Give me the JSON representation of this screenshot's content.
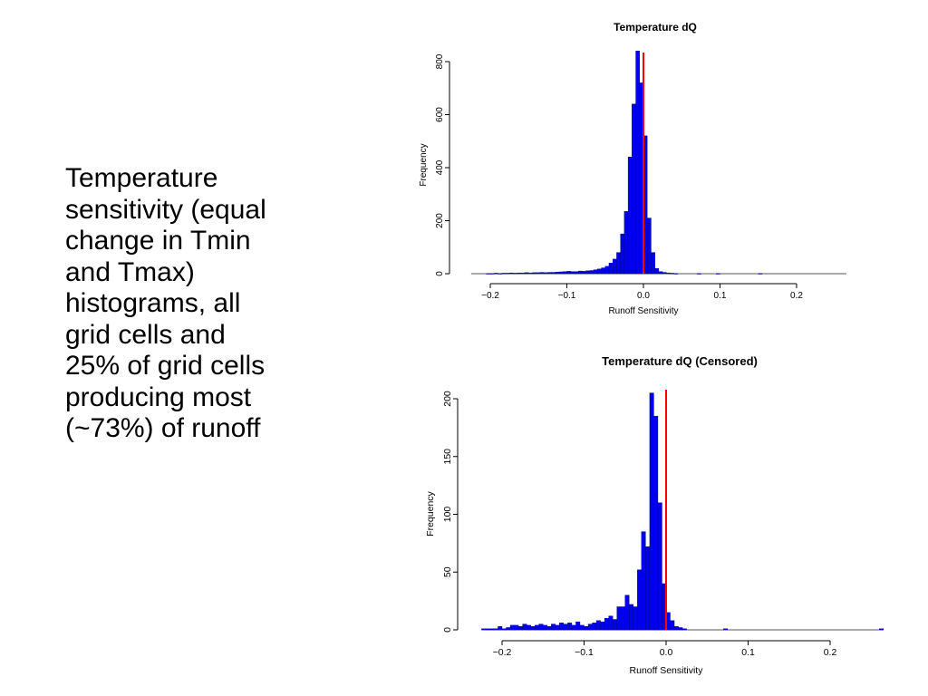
{
  "slide": {
    "text": "Temperature\nsensitivity (equal\nchange in Tmin\nand Tmax)\nhistograms, all\ngrid cells and\n25% of grid cells\nproducing most\n(~73%) of runoff"
  },
  "colors": {
    "bars": "#0000ee",
    "bar_outline": "#000080",
    "marker_line": "#ff0000"
  },
  "chart_data": [
    {
      "type": "bar",
      "title": "Temperature dQ",
      "xlabel": "Runoff Sensitivity",
      "ylabel": "Frequency",
      "xlim": [
        -0.225,
        0.265
      ],
      "ylim": [
        0,
        800
      ],
      "xticks": [
        -0.2,
        -0.1,
        0.0,
        0.1,
        0.2
      ],
      "xtick_labels": [
        "−0.2",
        "−0.1",
        "0.0",
        "0.1",
        "0.2"
      ],
      "yticks": [
        0,
        200,
        400,
        600,
        800
      ],
      "ytick_labels": [
        "0",
        "200",
        "400",
        "600",
        "800"
      ],
      "bin_width": 0.005,
      "bins": [
        {
          "x": -0.205,
          "y": 1
        },
        {
          "x": -0.2,
          "y": 1
        },
        {
          "x": -0.195,
          "y": 2
        },
        {
          "x": -0.19,
          "y": 1
        },
        {
          "x": -0.185,
          "y": 2
        },
        {
          "x": -0.18,
          "y": 2
        },
        {
          "x": -0.175,
          "y": 3
        },
        {
          "x": -0.17,
          "y": 2
        },
        {
          "x": -0.165,
          "y": 3
        },
        {
          "x": -0.16,
          "y": 3
        },
        {
          "x": -0.155,
          "y": 4
        },
        {
          "x": -0.15,
          "y": 3
        },
        {
          "x": -0.145,
          "y": 4
        },
        {
          "x": -0.14,
          "y": 4
        },
        {
          "x": -0.135,
          "y": 5
        },
        {
          "x": -0.13,
          "y": 4
        },
        {
          "x": -0.125,
          "y": 5
        },
        {
          "x": -0.12,
          "y": 5
        },
        {
          "x": -0.115,
          "y": 6
        },
        {
          "x": -0.11,
          "y": 7
        },
        {
          "x": -0.105,
          "y": 8
        },
        {
          "x": -0.1,
          "y": 9
        },
        {
          "x": -0.095,
          "y": 8
        },
        {
          "x": -0.09,
          "y": 8
        },
        {
          "x": -0.085,
          "y": 10
        },
        {
          "x": -0.08,
          "y": 9
        },
        {
          "x": -0.075,
          "y": 11
        },
        {
          "x": -0.07,
          "y": 12
        },
        {
          "x": -0.065,
          "y": 15
        },
        {
          "x": -0.06,
          "y": 18
        },
        {
          "x": -0.055,
          "y": 22
        },
        {
          "x": -0.05,
          "y": 28
        },
        {
          "x": -0.045,
          "y": 40
        },
        {
          "x": -0.04,
          "y": 55
        },
        {
          "x": -0.035,
          "y": 80
        },
        {
          "x": -0.03,
          "y": 150
        },
        {
          "x": -0.025,
          "y": 235
        },
        {
          "x": -0.02,
          "y": 440
        },
        {
          "x": -0.015,
          "y": 640
        },
        {
          "x": -0.01,
          "y": 840
        },
        {
          "x": -0.005,
          "y": 720
        },
        {
          "x": 0.0,
          "y": 520
        },
        {
          "x": 0.005,
          "y": 210
        },
        {
          "x": 0.01,
          "y": 80
        },
        {
          "x": 0.015,
          "y": 20
        },
        {
          "x": 0.02,
          "y": 8
        },
        {
          "x": 0.025,
          "y": 5
        },
        {
          "x": 0.03,
          "y": 3
        },
        {
          "x": 0.035,
          "y": 2
        },
        {
          "x": 0.04,
          "y": 1
        },
        {
          "x": 0.07,
          "y": 1
        },
        {
          "x": 0.095,
          "y": 1
        },
        {
          "x": 0.15,
          "y": 1
        }
      ],
      "vline_x": 0.0
    },
    {
      "type": "bar",
      "title": "Temperature dQ (Censored)",
      "xlabel": "Runoff Sensitivity",
      "ylabel": "Frequency",
      "xlim": [
        -0.225,
        0.265
      ],
      "ylim": [
        0,
        200
      ],
      "xticks": [
        -0.2,
        -0.1,
        0.0,
        0.1,
        0.2
      ],
      "xtick_labels": [
        "−0.2",
        "−0.1",
        "0.0",
        "0.1",
        "0.2"
      ],
      "yticks": [
        0,
        50,
        100,
        150,
        200
      ],
      "ytick_labels": [
        "0",
        "50",
        "100",
        "150",
        "200"
      ],
      "bin_width": 0.005,
      "bins": [
        {
          "x": -0.225,
          "y": 1
        },
        {
          "x": -0.22,
          "y": 1
        },
        {
          "x": -0.215,
          "y": 1
        },
        {
          "x": -0.21,
          "y": 1
        },
        {
          "x": -0.205,
          "y": 3
        },
        {
          "x": -0.2,
          "y": 1
        },
        {
          "x": -0.195,
          "y": 2
        },
        {
          "x": -0.19,
          "y": 4
        },
        {
          "x": -0.185,
          "y": 4
        },
        {
          "x": -0.18,
          "y": 3
        },
        {
          "x": -0.175,
          "y": 5
        },
        {
          "x": -0.17,
          "y": 4
        },
        {
          "x": -0.165,
          "y": 3
        },
        {
          "x": -0.16,
          "y": 4
        },
        {
          "x": -0.155,
          "y": 5
        },
        {
          "x": -0.15,
          "y": 4
        },
        {
          "x": -0.145,
          "y": 3
        },
        {
          "x": -0.14,
          "y": 5
        },
        {
          "x": -0.135,
          "y": 4
        },
        {
          "x": -0.13,
          "y": 6
        },
        {
          "x": -0.125,
          "y": 5
        },
        {
          "x": -0.12,
          "y": 6
        },
        {
          "x": -0.115,
          "y": 4
        },
        {
          "x": -0.11,
          "y": 7
        },
        {
          "x": -0.105,
          "y": 4
        },
        {
          "x": -0.1,
          "y": 3
        },
        {
          "x": -0.095,
          "y": 5
        },
        {
          "x": -0.09,
          "y": 6
        },
        {
          "x": -0.085,
          "y": 8
        },
        {
          "x": -0.08,
          "y": 7
        },
        {
          "x": -0.075,
          "y": 10
        },
        {
          "x": -0.07,
          "y": 12
        },
        {
          "x": -0.065,
          "y": 9
        },
        {
          "x": -0.06,
          "y": 20
        },
        {
          "x": -0.055,
          "y": 20
        },
        {
          "x": -0.05,
          "y": 30
        },
        {
          "x": -0.045,
          "y": 22
        },
        {
          "x": -0.04,
          "y": 20
        },
        {
          "x": -0.035,
          "y": 52
        },
        {
          "x": -0.03,
          "y": 85
        },
        {
          "x": -0.025,
          "y": 72
        },
        {
          "x": -0.02,
          "y": 205
        },
        {
          "x": -0.015,
          "y": 185
        },
        {
          "x": -0.01,
          "y": 110
        },
        {
          "x": -0.005,
          "y": 40
        },
        {
          "x": 0.0,
          "y": 15
        },
        {
          "x": 0.005,
          "y": 8
        },
        {
          "x": 0.01,
          "y": 3
        },
        {
          "x": 0.015,
          "y": 2
        },
        {
          "x": 0.02,
          "y": 1
        },
        {
          "x": 0.07,
          "y": 1
        },
        {
          "x": 0.26,
          "y": 1
        }
      ],
      "vline_x": 0.0
    }
  ]
}
